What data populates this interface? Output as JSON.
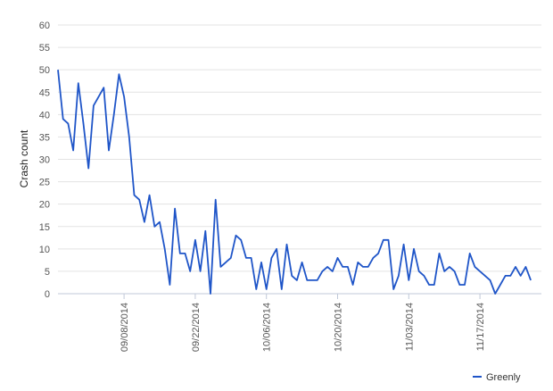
{
  "chart_data": {
    "type": "line",
    "title": "",
    "xlabel": "",
    "ylabel": "Crash count",
    "ylim": [
      0,
      60
    ],
    "y_ticks": [
      "0",
      "5",
      "10",
      "15",
      "20",
      "25",
      "30",
      "35",
      "40",
      "45",
      "50",
      "55",
      "60"
    ],
    "x_range": [
      "2014-08-26",
      "2014-12-01"
    ],
    "x_ticks": [
      {
        "label": "09/08/2014",
        "date": "2014-09-08"
      },
      {
        "label": "09/22/2014",
        "date": "2014-09-22"
      },
      {
        "label": "10/06/2014",
        "date": "2014-10-06"
      },
      {
        "label": "10/20/2014",
        "date": "2014-10-20"
      },
      {
        "label": "11/03/2014",
        "date": "2014-11-03"
      },
      {
        "label": "11/17/2014",
        "date": "2014-11-17"
      }
    ],
    "grid": true,
    "legend_position": "bottom-right",
    "series": [
      {
        "name": "Greenly",
        "color": "#1f55c8",
        "points": [
          [
            "2014-08-26",
            50
          ],
          [
            "2014-08-27",
            39
          ],
          [
            "2014-08-28",
            38
          ],
          [
            "2014-08-29",
            32
          ],
          [
            "2014-08-30",
            47
          ],
          [
            "2014-08-31",
            38
          ],
          [
            "2014-09-01",
            28
          ],
          [
            "2014-09-02",
            42
          ],
          [
            "2014-09-03",
            44
          ],
          [
            "2014-09-04",
            46
          ],
          [
            "2014-09-05",
            32
          ],
          [
            "2014-09-06",
            40
          ],
          [
            "2014-09-07",
            49
          ],
          [
            "2014-09-08",
            44
          ],
          [
            "2014-09-09",
            35
          ],
          [
            "2014-09-10",
            22
          ],
          [
            "2014-09-11",
            21
          ],
          [
            "2014-09-12",
            16
          ],
          [
            "2014-09-13",
            22
          ],
          [
            "2014-09-14",
            15
          ],
          [
            "2014-09-15",
            16
          ],
          [
            "2014-09-16",
            10
          ],
          [
            "2014-09-17",
            2
          ],
          [
            "2014-09-18",
            19
          ],
          [
            "2014-09-19",
            9
          ],
          [
            "2014-09-20",
            9
          ],
          [
            "2014-09-21",
            5
          ],
          [
            "2014-09-22",
            12
          ],
          [
            "2014-09-23",
            5
          ],
          [
            "2014-09-24",
            14
          ],
          [
            "2014-09-25",
            0
          ],
          [
            "2014-09-26",
            21
          ],
          [
            "2014-09-27",
            6
          ],
          [
            "2014-09-28",
            7
          ],
          [
            "2014-09-29",
            8
          ],
          [
            "2014-09-30",
            13
          ],
          [
            "2014-10-01",
            12
          ],
          [
            "2014-10-02",
            8
          ],
          [
            "2014-10-03",
            8
          ],
          [
            "2014-10-04",
            1
          ],
          [
            "2014-10-05",
            7
          ],
          [
            "2014-10-06",
            1
          ],
          [
            "2014-10-07",
            8
          ],
          [
            "2014-10-08",
            10
          ],
          [
            "2014-10-09",
            1
          ],
          [
            "2014-10-10",
            11
          ],
          [
            "2014-10-11",
            4
          ],
          [
            "2014-10-12",
            3
          ],
          [
            "2014-10-13",
            7
          ],
          [
            "2014-10-14",
            3
          ],
          [
            "2014-10-15",
            3
          ],
          [
            "2014-10-16",
            3
          ],
          [
            "2014-10-17",
            5
          ],
          [
            "2014-10-18",
            6
          ],
          [
            "2014-10-19",
            5
          ],
          [
            "2014-10-20",
            8
          ],
          [
            "2014-10-21",
            6
          ],
          [
            "2014-10-22",
            6
          ],
          [
            "2014-10-23",
            2
          ],
          [
            "2014-10-24",
            7
          ],
          [
            "2014-10-25",
            6
          ],
          [
            "2014-10-26",
            6
          ],
          [
            "2014-10-27",
            8
          ],
          [
            "2014-10-28",
            9
          ],
          [
            "2014-10-29",
            12
          ],
          [
            "2014-10-30",
            12
          ],
          [
            "2014-10-31",
            1
          ],
          [
            "2014-11-01",
            4
          ],
          [
            "2014-11-02",
            11
          ],
          [
            "2014-11-03",
            3
          ],
          [
            "2014-11-04",
            10
          ],
          [
            "2014-11-05",
            5
          ],
          [
            "2014-11-06",
            4
          ],
          [
            "2014-11-07",
            2
          ],
          [
            "2014-11-08",
            2
          ],
          [
            "2014-11-09",
            9
          ],
          [
            "2014-11-10",
            5
          ],
          [
            "2014-11-11",
            6
          ],
          [
            "2014-11-12",
            5
          ],
          [
            "2014-11-13",
            2
          ],
          [
            "2014-11-14",
            2
          ],
          [
            "2014-11-15",
            9
          ],
          [
            "2014-11-16",
            6
          ],
          [
            "2014-11-17",
            5
          ],
          [
            "2014-11-18",
            4
          ],
          [
            "2014-11-19",
            3
          ],
          [
            "2014-11-20",
            0
          ],
          [
            "2014-11-21",
            2
          ],
          [
            "2014-11-22",
            4
          ],
          [
            "2014-11-23",
            4
          ],
          [
            "2014-11-24",
            6
          ],
          [
            "2014-11-25",
            4
          ],
          [
            "2014-11-26",
            6
          ],
          [
            "2014-11-27",
            3
          ]
        ]
      }
    ]
  },
  "colors": {
    "gridline": "#e3e3e3",
    "axis": "#c0c8d8",
    "line": "#1f55c8"
  }
}
